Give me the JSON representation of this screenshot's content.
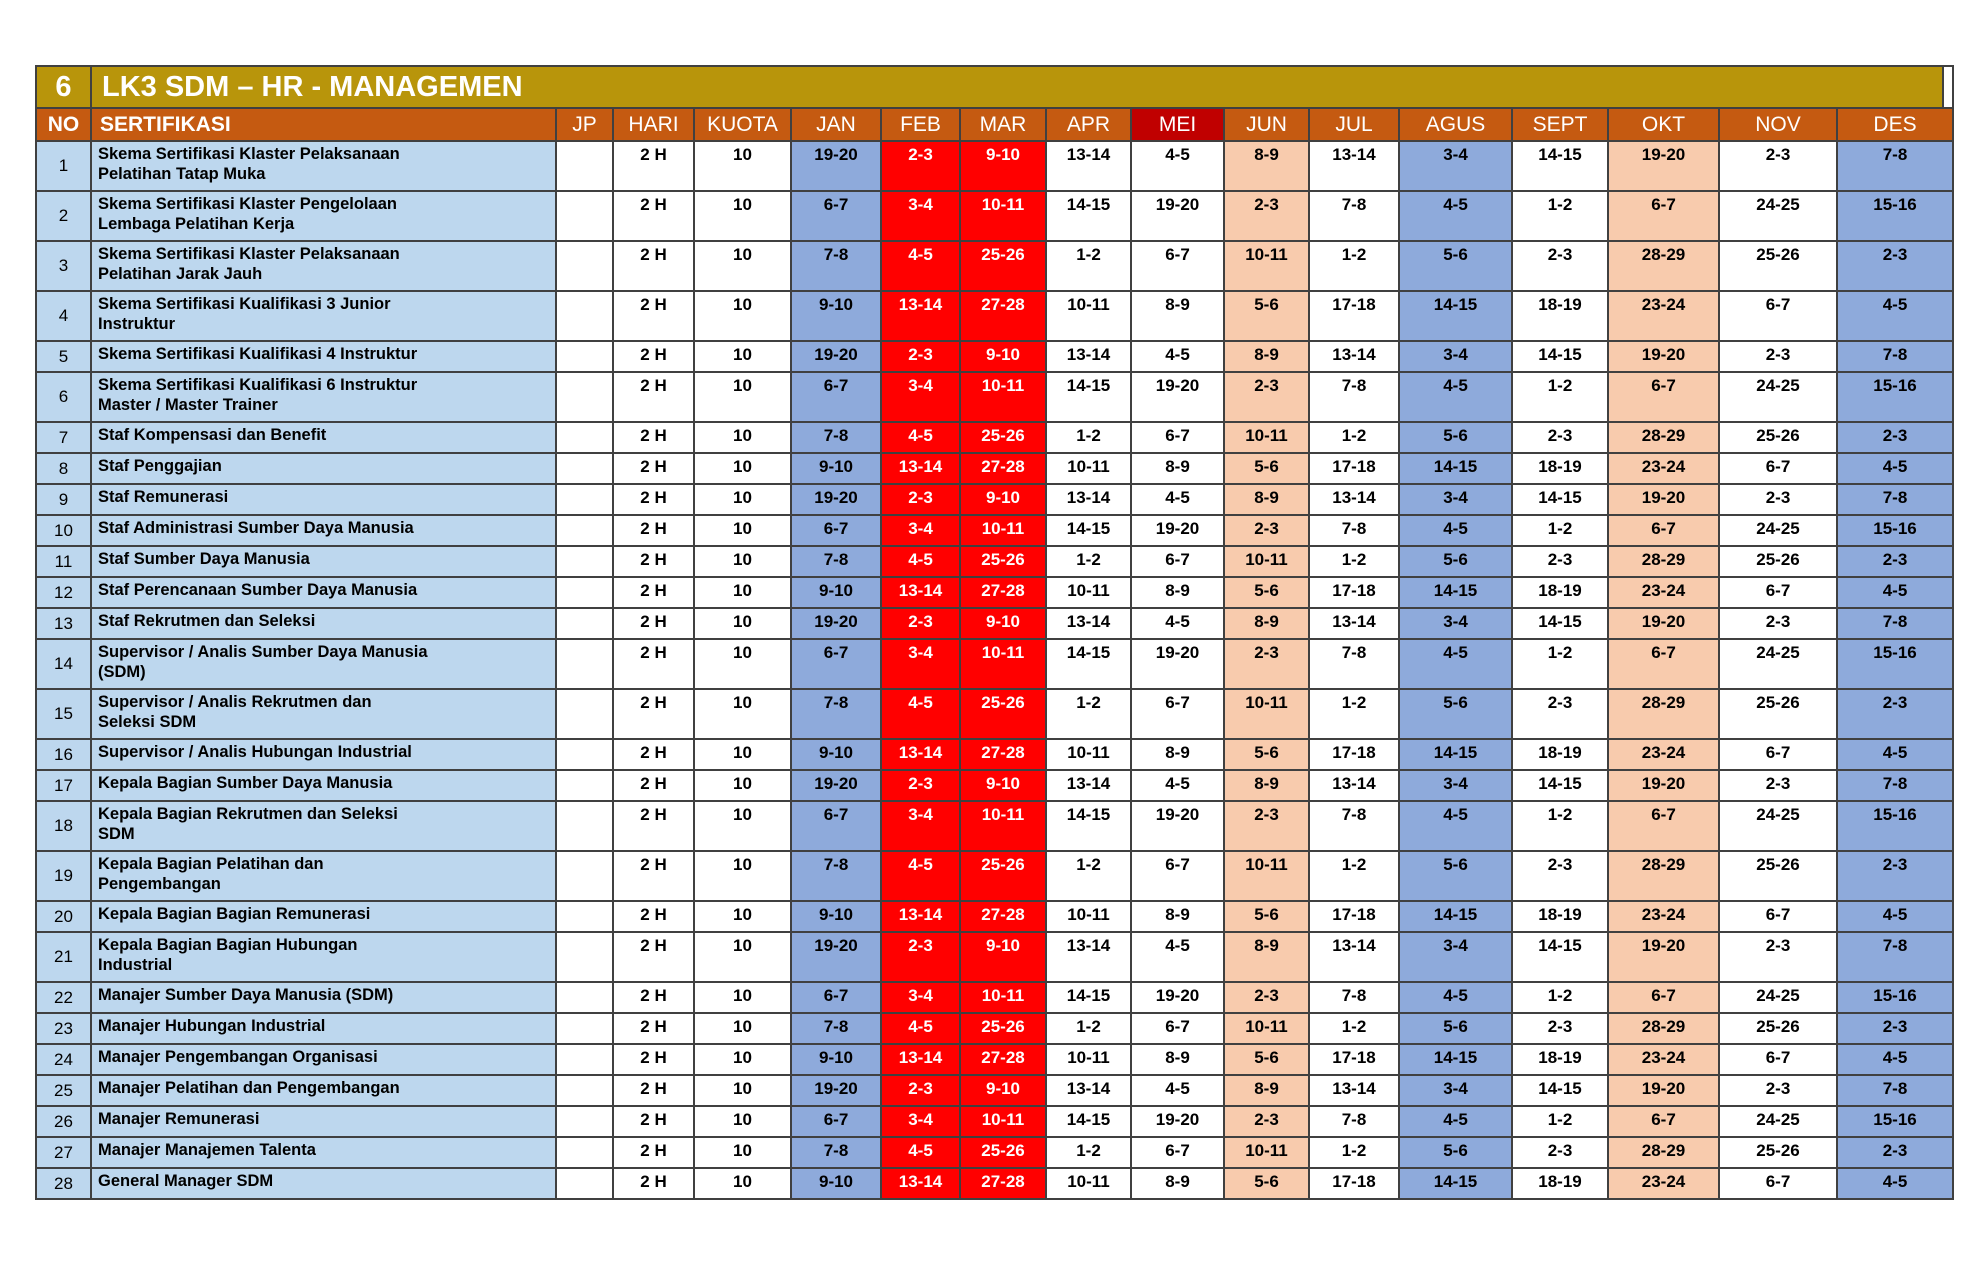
{
  "title_row": {
    "no": "6",
    "title": "LK3 SDM – HR - MANAGEMEN"
  },
  "columns": [
    "NO",
    "SERTIFIKASI",
    "JP",
    "HARI",
    "KUOTA",
    "JAN",
    "FEB",
    "MAR",
    "APR",
    "MEI",
    "JUN",
    "JUL",
    "AGUS",
    "SEPT",
    "OKT",
    "NOV",
    "DES"
  ],
  "month_cell_styles": [
    "blue",
    "red",
    "red",
    "white",
    "white",
    "peach",
    "white",
    "blue",
    "white",
    "peach",
    "white",
    "blue"
  ],
  "colors": {
    "gold": "#B8950B",
    "orange": "#C55A11",
    "red_header": "#C00000",
    "red_cell": "#FF0000",
    "blue_cell": "#8EAADB",
    "peach_cell": "#F8CBAD",
    "light_blue": "#BDD7EE",
    "border": "#404040"
  },
  "rows": [
    {
      "no": "1",
      "sertifikasi": "Skema Sertifikasi Klaster Pelaksanaan\nPelatihan Tatap Muka",
      "jp": "",
      "hari": "2 H",
      "kuota": "10",
      "dates": [
        "19-20",
        "2-3",
        "9-10",
        "13-14",
        "4-5",
        "8-9",
        "13-14",
        "3-4",
        "14-15",
        "19-20",
        "2-3",
        "7-8"
      ]
    },
    {
      "no": "2",
      "sertifikasi": "Skema Sertifikasi Klaster Pengelolaan\nLembaga Pelatihan Kerja",
      "jp": "",
      "hari": "2 H",
      "kuota": "10",
      "dates": [
        "6-7",
        "3-4",
        "10-11",
        "14-15",
        "19-20",
        "2-3",
        "7-8",
        "4-5",
        "1-2",
        "6-7",
        "24-25",
        "15-16"
      ]
    },
    {
      "no": "3",
      "sertifikasi": "Skema Sertifikasi Klaster Pelaksanaan\nPelatihan Jarak Jauh",
      "jp": "",
      "hari": "2 H",
      "kuota": "10",
      "dates": [
        "7-8",
        "4-5",
        "25-26",
        "1-2",
        "6-7",
        "10-11",
        "1-2",
        "5-6",
        "2-3",
        "28-29",
        "25-26",
        "2-3"
      ]
    },
    {
      "no": "4",
      "sertifikasi": "Skema Sertifikasi Kualifikasi 3 Junior\nInstruktur",
      "jp": "",
      "hari": "2 H",
      "kuota": "10",
      "dates": [
        "9-10",
        "13-14",
        "27-28",
        "10-11",
        "8-9",
        "5-6",
        "17-18",
        "14-15",
        "18-19",
        "23-24",
        "6-7",
        "4-5"
      ]
    },
    {
      "no": "5",
      "sertifikasi": "Skema Sertifikasi Kualifikasi 4 Instruktur",
      "jp": "",
      "hari": "2 H",
      "kuota": "10",
      "dates": [
        "19-20",
        "2-3",
        "9-10",
        "13-14",
        "4-5",
        "8-9",
        "13-14",
        "3-4",
        "14-15",
        "19-20",
        "2-3",
        "7-8"
      ]
    },
    {
      "no": "6",
      "sertifikasi": "Skema Sertifikasi Kualifikasi 6 Instruktur\nMaster / Master Trainer",
      "jp": "",
      "hari": "2 H",
      "kuota": "10",
      "dates": [
        "6-7",
        "3-4",
        "10-11",
        "14-15",
        "19-20",
        "2-3",
        "7-8",
        "4-5",
        "1-2",
        "6-7",
        "24-25",
        "15-16"
      ]
    },
    {
      "no": "7",
      "sertifikasi": "Staf Kompensasi dan Benefit",
      "jp": "",
      "hari": "2 H",
      "kuota": "10",
      "dates": [
        "7-8",
        "4-5",
        "25-26",
        "1-2",
        "6-7",
        "10-11",
        "1-2",
        "5-6",
        "2-3",
        "28-29",
        "25-26",
        "2-3"
      ]
    },
    {
      "no": "8",
      "sertifikasi": "Staf Penggajian",
      "jp": "",
      "hari": "2 H",
      "kuota": "10",
      "dates": [
        "9-10",
        "13-14",
        "27-28",
        "10-11",
        "8-9",
        "5-6",
        "17-18",
        "14-15",
        "18-19",
        "23-24",
        "6-7",
        "4-5"
      ]
    },
    {
      "no": "9",
      "sertifikasi": "Staf Remunerasi",
      "jp": "",
      "hari": "2 H",
      "kuota": "10",
      "dates": [
        "19-20",
        "2-3",
        "9-10",
        "13-14",
        "4-5",
        "8-9",
        "13-14",
        "3-4",
        "14-15",
        "19-20",
        "2-3",
        "7-8"
      ]
    },
    {
      "no": "10",
      "sertifikasi": "Staf Administrasi Sumber Daya Manusia",
      "jp": "",
      "hari": "2 H",
      "kuota": "10",
      "dates": [
        "6-7",
        "3-4",
        "10-11",
        "14-15",
        "19-20",
        "2-3",
        "7-8",
        "4-5",
        "1-2",
        "6-7",
        "24-25",
        "15-16"
      ]
    },
    {
      "no": "11",
      "sertifikasi": "Staf Sumber Daya Manusia",
      "jp": "",
      "hari": "2 H",
      "kuota": "10",
      "dates": [
        "7-8",
        "4-5",
        "25-26",
        "1-2",
        "6-7",
        "10-11",
        "1-2",
        "5-6",
        "2-3",
        "28-29",
        "25-26",
        "2-3"
      ]
    },
    {
      "no": "12",
      "sertifikasi": "Staf Perencanaan Sumber Daya Manusia",
      "jp": "",
      "hari": "2 H",
      "kuota": "10",
      "dates": [
        "9-10",
        "13-14",
        "27-28",
        "10-11",
        "8-9",
        "5-6",
        "17-18",
        "14-15",
        "18-19",
        "23-24",
        "6-7",
        "4-5"
      ]
    },
    {
      "no": "13",
      "sertifikasi": "Staf Rekrutmen dan Seleksi",
      "jp": "",
      "hari": "2 H",
      "kuota": "10",
      "dates": [
        "19-20",
        "2-3",
        "9-10",
        "13-14",
        "4-5",
        "8-9",
        "13-14",
        "3-4",
        "14-15",
        "19-20",
        "2-3",
        "7-8"
      ]
    },
    {
      "no": "14",
      "sertifikasi": "Supervisor / Analis Sumber Daya Manusia\n(SDM)",
      "jp": "",
      "hari": "2 H",
      "kuota": "10",
      "dates": [
        "6-7",
        "3-4",
        "10-11",
        "14-15",
        "19-20",
        "2-3",
        "7-8",
        "4-5",
        "1-2",
        "6-7",
        "24-25",
        "15-16"
      ]
    },
    {
      "no": "15",
      "sertifikasi": "Supervisor / Analis Rekrutmen dan\nSeleksi SDM",
      "jp": "",
      "hari": "2 H",
      "kuota": "10",
      "dates": [
        "7-8",
        "4-5",
        "25-26",
        "1-2",
        "6-7",
        "10-11",
        "1-2",
        "5-6",
        "2-3",
        "28-29",
        "25-26",
        "2-3"
      ]
    },
    {
      "no": "16",
      "sertifikasi": "Supervisor / Analis Hubungan Industrial",
      "jp": "",
      "hari": "2 H",
      "kuota": "10",
      "dates": [
        "9-10",
        "13-14",
        "27-28",
        "10-11",
        "8-9",
        "5-6",
        "17-18",
        "14-15",
        "18-19",
        "23-24",
        "6-7",
        "4-5"
      ]
    },
    {
      "no": "17",
      "sertifikasi": "Kepala Bagian Sumber Daya Manusia",
      "jp": "",
      "hari": "2 H",
      "kuota": "10",
      "dates": [
        "19-20",
        "2-3",
        "9-10",
        "13-14",
        "4-5",
        "8-9",
        "13-14",
        "3-4",
        "14-15",
        "19-20",
        "2-3",
        "7-8"
      ]
    },
    {
      "no": "18",
      "sertifikasi": "Kepala Bagian Rekrutmen dan Seleksi\nSDM",
      "jp": "",
      "hari": "2 H",
      "kuota": "10",
      "dates": [
        "6-7",
        "3-4",
        "10-11",
        "14-15",
        "19-20",
        "2-3",
        "7-8",
        "4-5",
        "1-2",
        "6-7",
        "24-25",
        "15-16"
      ]
    },
    {
      "no": "19",
      "sertifikasi": "Kepala Bagian Pelatihan dan\nPengembangan",
      "jp": "",
      "hari": "2 H",
      "kuota": "10",
      "dates": [
        "7-8",
        "4-5",
        "25-26",
        "1-2",
        "6-7",
        "10-11",
        "1-2",
        "5-6",
        "2-3",
        "28-29",
        "25-26",
        "2-3"
      ]
    },
    {
      "no": "20",
      "sertifikasi": "Kepala Bagian Bagian Remunerasi",
      "jp": "",
      "hari": "2 H",
      "kuota": "10",
      "dates": [
        "9-10",
        "13-14",
        "27-28",
        "10-11",
        "8-9",
        "5-6",
        "17-18",
        "14-15",
        "18-19",
        "23-24",
        "6-7",
        "4-5"
      ]
    },
    {
      "no": "21",
      "sertifikasi": "Kepala Bagian Bagian Hubungan\nIndustrial",
      "jp": "",
      "hari": "2 H",
      "kuota": "10",
      "dates": [
        "19-20",
        "2-3",
        "9-10",
        "13-14",
        "4-5",
        "8-9",
        "13-14",
        "3-4",
        "14-15",
        "19-20",
        "2-3",
        "7-8"
      ]
    },
    {
      "no": "22",
      "sertifikasi": "Manajer Sumber Daya Manusia (SDM)",
      "jp": "",
      "hari": "2 H",
      "kuota": "10",
      "dates": [
        "6-7",
        "3-4",
        "10-11",
        "14-15",
        "19-20",
        "2-3",
        "7-8",
        "4-5",
        "1-2",
        "6-7",
        "24-25",
        "15-16"
      ]
    },
    {
      "no": "23",
      "sertifikasi": "Manajer Hubungan Industrial",
      "jp": "",
      "hari": "2 H",
      "kuota": "10",
      "dates": [
        "7-8",
        "4-5",
        "25-26",
        "1-2",
        "6-7",
        "10-11",
        "1-2",
        "5-6",
        "2-3",
        "28-29",
        "25-26",
        "2-3"
      ]
    },
    {
      "no": "24",
      "sertifikasi": "Manajer Pengembangan Organisasi",
      "jp": "",
      "hari": "2 H",
      "kuota": "10",
      "dates": [
        "9-10",
        "13-14",
        "27-28",
        "10-11",
        "8-9",
        "5-6",
        "17-18",
        "14-15",
        "18-19",
        "23-24",
        "6-7",
        "4-5"
      ]
    },
    {
      "no": "25",
      "sertifikasi": "Manajer Pelatihan dan Pengembangan",
      "jp": "",
      "hari": "2 H",
      "kuota": "10",
      "dates": [
        "19-20",
        "2-3",
        "9-10",
        "13-14",
        "4-5",
        "8-9",
        "13-14",
        "3-4",
        "14-15",
        "19-20",
        "2-3",
        "7-8"
      ]
    },
    {
      "no": "26",
      "sertifikasi": "Manajer Remunerasi",
      "jp": "",
      "hari": "2 H",
      "kuota": "10",
      "dates": [
        "6-7",
        "3-4",
        "10-11",
        "14-15",
        "19-20",
        "2-3",
        "7-8",
        "4-5",
        "1-2",
        "6-7",
        "24-25",
        "15-16"
      ]
    },
    {
      "no": "27",
      "sertifikasi": "Manajer Manajemen Talenta",
      "jp": "",
      "hari": "2 H",
      "kuota": "10",
      "dates": [
        "7-8",
        "4-5",
        "25-26",
        "1-2",
        "6-7",
        "10-11",
        "1-2",
        "5-6",
        "2-3",
        "28-29",
        "25-26",
        "2-3"
      ]
    },
    {
      "no": "28",
      "sertifikasi": "General Manager SDM",
      "jp": "",
      "hari": "2 H",
      "kuota": "10",
      "dates": [
        "9-10",
        "13-14",
        "27-28",
        "10-11",
        "8-9",
        "5-6",
        "17-18",
        "14-15",
        "18-19",
        "23-24",
        "6-7",
        "4-5"
      ]
    }
  ]
}
